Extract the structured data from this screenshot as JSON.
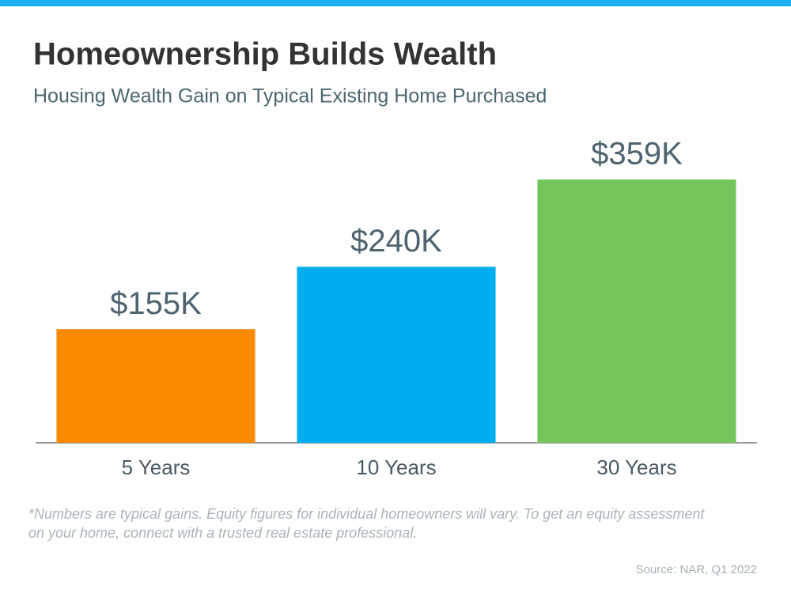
{
  "chart_data": {
    "type": "bar",
    "title": "Homeownership Builds Wealth",
    "subtitle": "Housing Wealth Gain on Typical Existing Home Purchased",
    "categories": [
      "5 Years",
      "10 Years",
      "30 Years"
    ],
    "values": [
      155,
      240,
      359
    ],
    "value_labels": [
      "$155K",
      "$240K",
      "$359K"
    ],
    "colors": [
      "#fb8a00",
      "#00aeef",
      "#74c55a"
    ],
    "ylim": [
      0,
      400
    ],
    "grid": false,
    "footnote": [
      "*Numbers are typical gains. Equity figures for individual homeowners will vary. To get an equity assessment",
      "on your home, connect with a trusted real estate professional."
    ],
    "source": "Source: NAR, Q1 2022"
  }
}
